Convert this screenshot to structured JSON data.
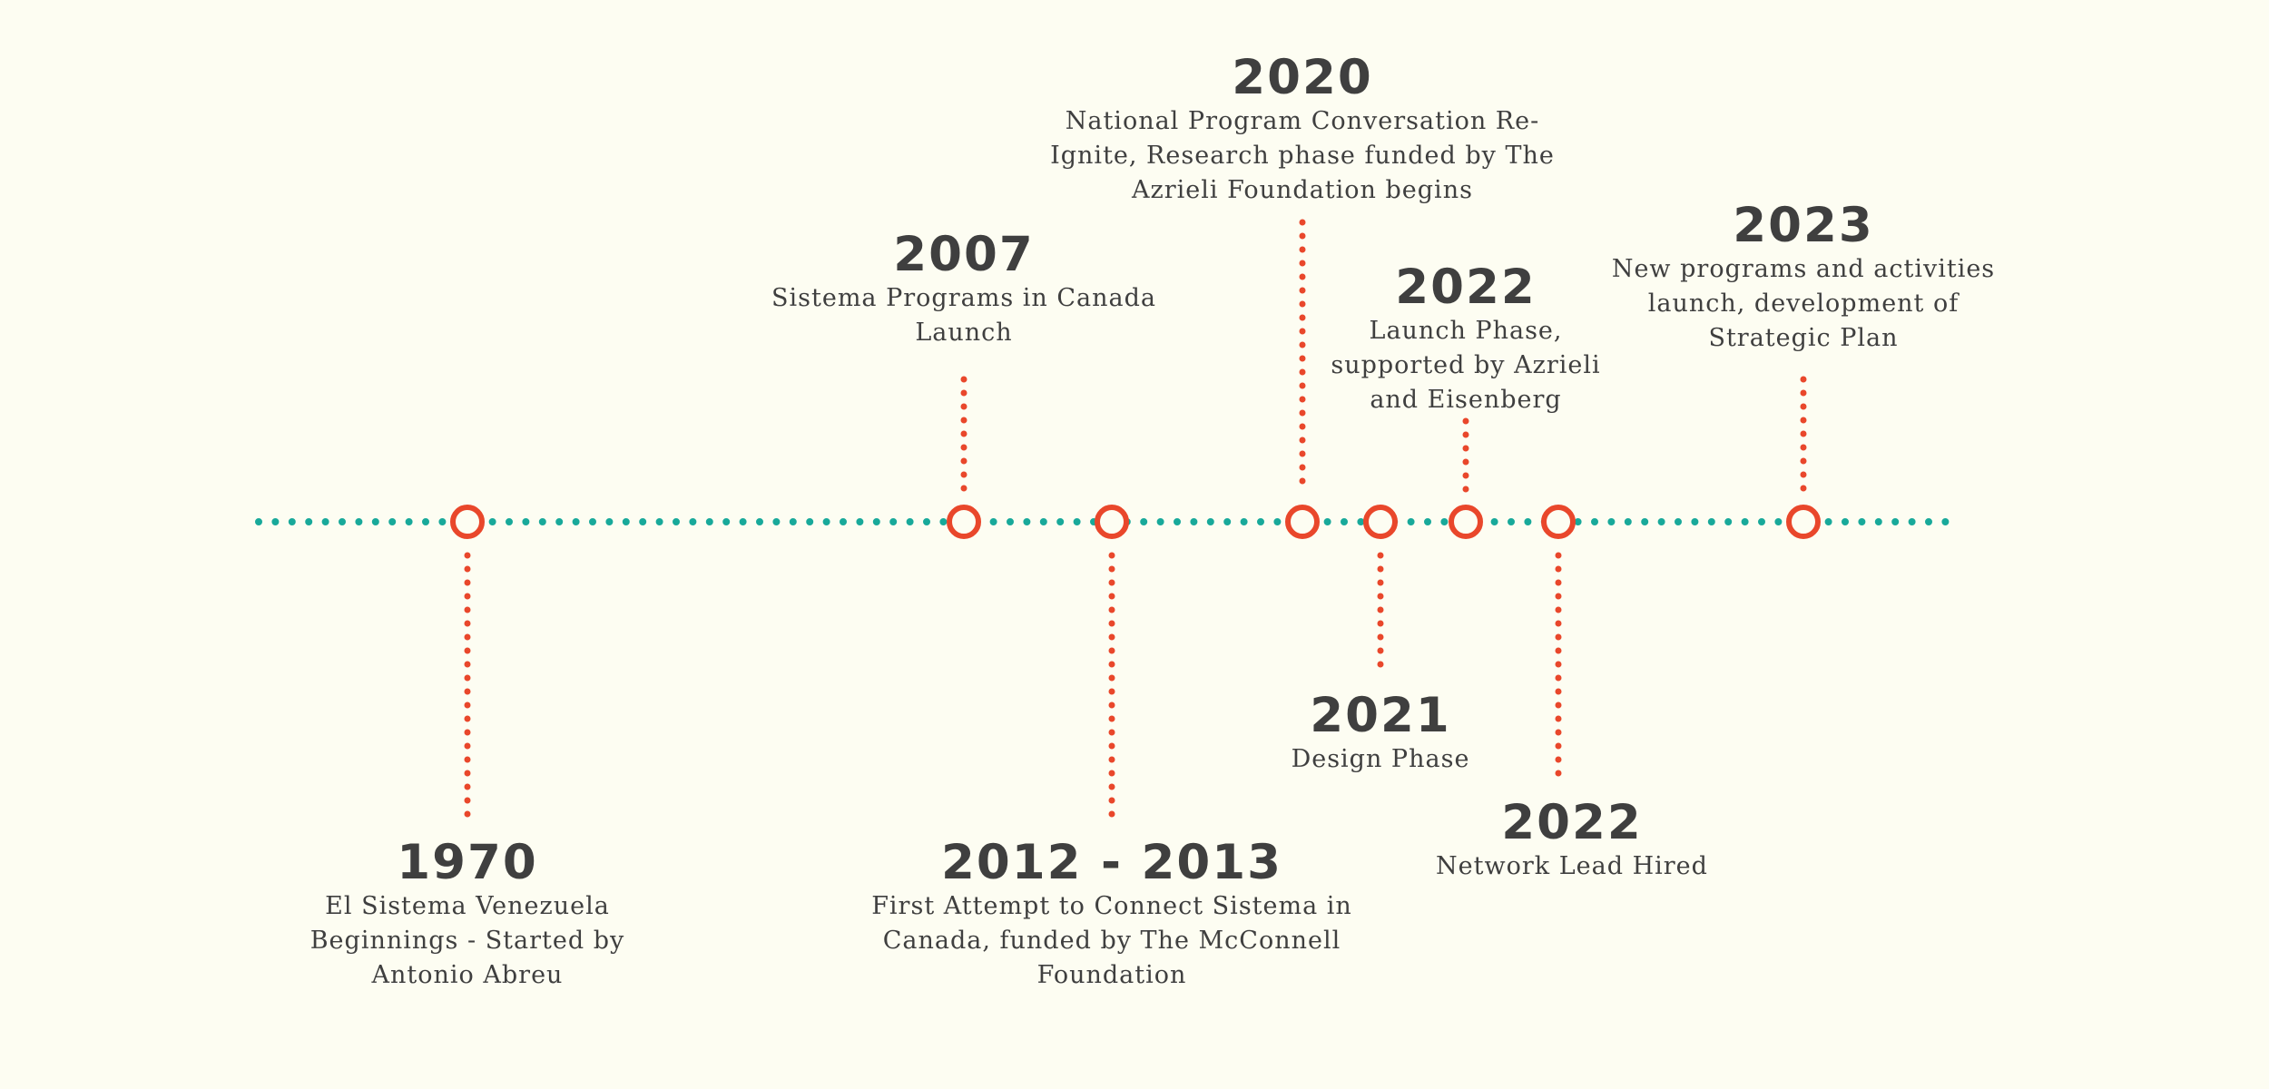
{
  "colors": {
    "background": "#fdfdf2",
    "axis": "#18a99a",
    "marker": "#e9472b",
    "text": "#3f3f3f"
  },
  "events": [
    {
      "id": "1970",
      "year": "1970",
      "description": "El Sistema Venezuela\nBeginnings - Started by\nAntonio Abreu",
      "side": "below"
    },
    {
      "id": "2007",
      "year": "2007",
      "description": "Sistema Programs in Canada\nLaunch",
      "side": "above"
    },
    {
      "id": "2012-2013",
      "year": "2012 - 2013",
      "description": "First Attempt to Connect Sistema in\nCanada, funded by The McConnell\nFoundation",
      "side": "below"
    },
    {
      "id": "2020",
      "year": "2020",
      "description": "National Program Conversation Re-\nIgnite, Research phase funded by The\nAzrieli Foundation begins",
      "side": "above"
    },
    {
      "id": "2021",
      "year": "2021",
      "description": "Design Phase",
      "side": "below"
    },
    {
      "id": "2022-launch",
      "year": "2022",
      "description": "Launch Phase,\nsupported by Azrieli\nand Eisenberg",
      "side": "above"
    },
    {
      "id": "2022-network",
      "year": "2022",
      "description": "Network Lead Hired",
      "side": "below"
    },
    {
      "id": "2023",
      "year": "2023",
      "description": "New programs and activities\nlaunch, development of\nStrategic Plan",
      "side": "above"
    }
  ]
}
